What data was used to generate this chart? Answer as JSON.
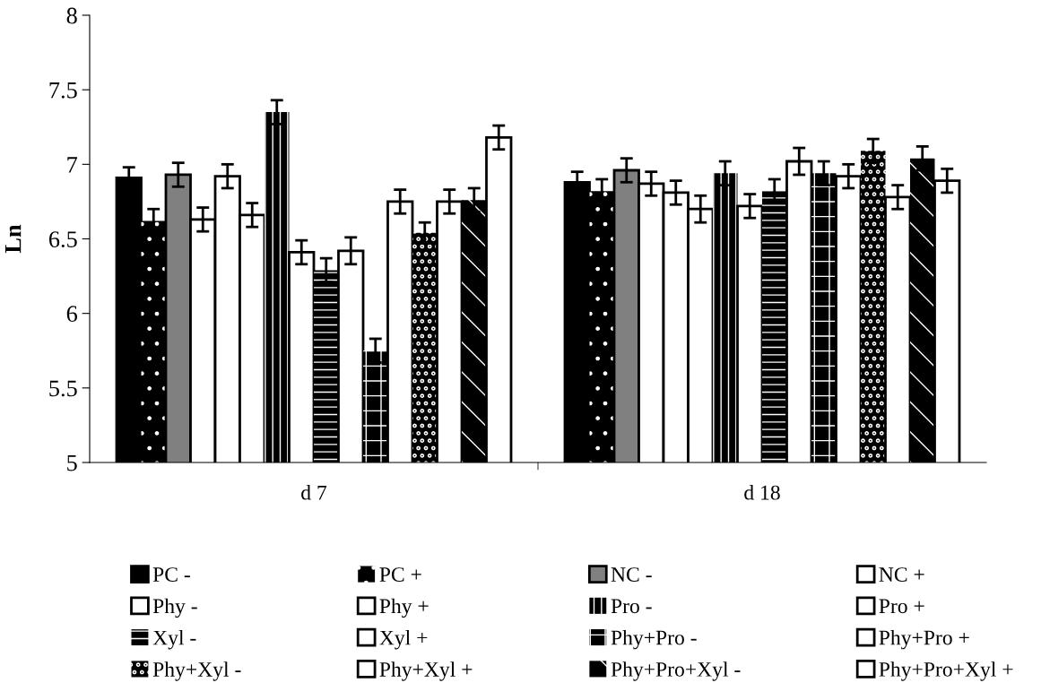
{
  "chart_data": {
    "type": "bar",
    "ylabel": "Ln",
    "categories": [
      "d 7",
      "d 18"
    ],
    "ylim": [
      5,
      8
    ],
    "yticks": [
      5,
      5.5,
      6,
      6.5,
      7,
      7.5,
      8
    ],
    "grid": false,
    "legend": "bottom",
    "series": [
      {
        "name": "PC -",
        "color": "#000000",
        "values": [
          6.91,
          6.88
        ],
        "errors": [
          0.07,
          0.07
        ]
      },
      {
        "name": "PC +",
        "color": "#000000",
        "values": [
          6.62,
          6.82
        ],
        "errors": [
          0.08,
          0.08
        ]
      },
      {
        "name": "NC -",
        "color": "#808080",
        "values": [
          6.93,
          6.96
        ],
        "errors": [
          0.08,
          0.08
        ]
      },
      {
        "name": "NC +",
        "color": "#ffffff",
        "values": [
          6.63,
          6.87
        ],
        "errors": [
          0.08,
          0.08
        ]
      },
      {
        "name": "Phy -",
        "color": "#ffffff",
        "values": [
          6.92,
          6.81
        ],
        "errors": [
          0.08,
          0.08
        ]
      },
      {
        "name": "Phy +",
        "color": "#ffffff",
        "values": [
          6.66,
          6.7
        ],
        "errors": [
          0.08,
          0.09
        ]
      },
      {
        "name": "Pro -",
        "color": "#000000",
        "values": [
          7.35,
          6.94
        ],
        "errors": [
          0.08,
          0.08
        ]
      },
      {
        "name": "Pro +",
        "color": "#ffffff",
        "values": [
          6.41,
          6.72
        ],
        "errors": [
          0.08,
          0.08
        ]
      },
      {
        "name": "Xyl -",
        "color": "#000000",
        "values": [
          6.29,
          6.82
        ],
        "errors": [
          0.08,
          0.08
        ]
      },
      {
        "name": "Xyl +",
        "color": "#ffffff",
        "values": [
          6.42,
          7.02
        ],
        "errors": [
          0.09,
          0.09
        ]
      },
      {
        "name": "Phy+Pro -",
        "color": "#000000",
        "values": [
          5.75,
          6.94
        ],
        "errors": [
          0.08,
          0.08
        ]
      },
      {
        "name": "Phy+Pro +",
        "color": "#ffffff",
        "values": [
          6.75,
          6.92
        ],
        "errors": [
          0.08,
          0.08
        ]
      },
      {
        "name": "Phy+Xyl -",
        "color": "#000000",
        "values": [
          6.54,
          7.09
        ],
        "errors": [
          0.07,
          0.08
        ]
      },
      {
        "name": "Phy+Xyl +",
        "color": "#ffffff",
        "values": [
          6.75,
          6.78
        ],
        "errors": [
          0.08,
          0.08
        ]
      },
      {
        "name": "Phy+Pro+Xyl -",
        "color": "#000000",
        "values": [
          6.76,
          7.04
        ],
        "errors": [
          0.08,
          0.08
        ]
      },
      {
        "name": "Phy+Pro+Xyl +",
        "color": "#ffffff",
        "values": [
          7.18,
          6.89
        ],
        "errors": [
          0.08,
          0.08
        ]
      }
    ]
  }
}
